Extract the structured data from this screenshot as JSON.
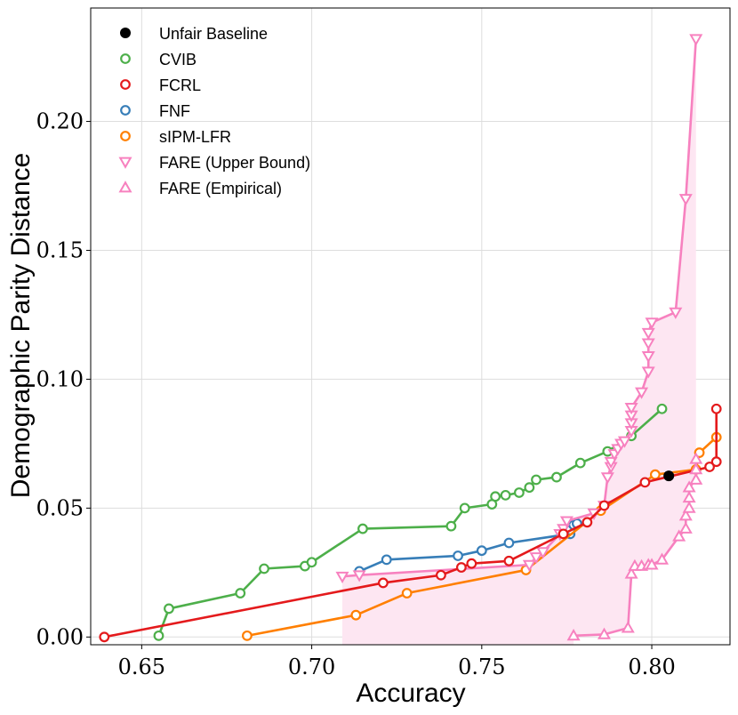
{
  "chart_data": {
    "type": "line",
    "title": "",
    "xlabel": "Accuracy",
    "ylabel": "Demographic Parity Distance",
    "xlim": [
      0.635,
      0.823
    ],
    "ylim": [
      -0.003,
      0.244
    ],
    "xticks": [
      0.65,
      0.7,
      0.75,
      0.8
    ],
    "xtick_labels": [
      "0.65",
      "0.70",
      "0.75",
      "0.80"
    ],
    "yticks": [
      0.0,
      0.05,
      0.1,
      0.15,
      0.2
    ],
    "ytick_labels": [
      "0.00",
      "0.05",
      "0.10",
      "0.15",
      "0.20"
    ],
    "grid": true,
    "legend_position": "top-left",
    "colors": {
      "baseline": "#000000",
      "cvib": "#4daf4a",
      "fcrl": "#e41a1c",
      "fnf": "#377eb8",
      "sipm": "#ff7f00",
      "fare": "#f781bf",
      "fill": "#fde6f2"
    },
    "series": [
      {
        "name": "Unfair Baseline",
        "key": "baseline",
        "marker": "dot",
        "points": [
          [
            0.805,
            0.0625
          ]
        ]
      },
      {
        "name": "CVIB",
        "key": "cvib",
        "marker": "circle",
        "points": [
          [
            0.655,
            0.0005
          ],
          [
            0.658,
            0.011
          ],
          [
            0.679,
            0.017
          ],
          [
            0.686,
            0.0265
          ],
          [
            0.698,
            0.0275
          ],
          [
            0.7,
            0.029
          ],
          [
            0.715,
            0.042
          ],
          [
            0.741,
            0.043
          ],
          [
            0.745,
            0.05
          ],
          [
            0.753,
            0.0515
          ],
          [
            0.754,
            0.0545
          ],
          [
            0.757,
            0.055
          ],
          [
            0.761,
            0.056
          ],
          [
            0.764,
            0.058
          ],
          [
            0.766,
            0.061
          ],
          [
            0.772,
            0.062
          ],
          [
            0.779,
            0.0675
          ],
          [
            0.787,
            0.072
          ],
          [
            0.794,
            0.078
          ],
          [
            0.803,
            0.0885
          ]
        ]
      },
      {
        "name": "FCRL",
        "key": "fcrl",
        "marker": "circle",
        "points": [
          [
            0.639,
            0.0
          ],
          [
            0.721,
            0.021
          ],
          [
            0.738,
            0.024
          ],
          [
            0.744,
            0.027
          ],
          [
            0.747,
            0.0285
          ],
          [
            0.758,
            0.0295
          ],
          [
            0.774,
            0.04
          ],
          [
            0.781,
            0.0445
          ],
          [
            0.786,
            0.051
          ],
          [
            0.798,
            0.06
          ],
          [
            0.817,
            0.066
          ],
          [
            0.819,
            0.068
          ],
          [
            0.819,
            0.0885
          ]
        ]
      },
      {
        "name": "FNF",
        "key": "fnf",
        "marker": "circle",
        "points": [
          [
            0.714,
            0.0255
          ],
          [
            0.722,
            0.03
          ],
          [
            0.743,
            0.0315
          ],
          [
            0.75,
            0.0335
          ],
          [
            0.758,
            0.0365
          ],
          [
            0.776,
            0.04
          ],
          [
            0.776,
            0.0415
          ],
          [
            0.777,
            0.0435
          ],
          [
            0.778,
            0.044
          ]
        ]
      },
      {
        "name": "sIPM-LFR",
        "key": "sipm",
        "marker": "circle",
        "points": [
          [
            0.681,
            0.0005
          ],
          [
            0.713,
            0.0085
          ],
          [
            0.728,
            0.017
          ],
          [
            0.763,
            0.026
          ],
          [
            0.785,
            0.049
          ],
          [
            0.801,
            0.063
          ],
          [
            0.813,
            0.065
          ],
          [
            0.814,
            0.0715
          ],
          [
            0.819,
            0.0775
          ]
        ]
      },
      {
        "name": "FARE (Upper Bound)",
        "key": "fare",
        "marker": "triangle-down",
        "points": [
          [
            0.709,
            0.0235
          ],
          [
            0.714,
            0.024
          ],
          [
            0.764,
            0.028
          ],
          [
            0.766,
            0.031
          ],
          [
            0.768,
            0.033
          ],
          [
            0.773,
            0.04
          ],
          [
            0.774,
            0.042
          ],
          [
            0.775,
            0.045
          ],
          [
            0.783,
            0.048
          ],
          [
            0.786,
            0.051
          ],
          [
            0.787,
            0.062
          ],
          [
            0.788,
            0.066
          ],
          [
            0.788,
            0.068
          ],
          [
            0.789,
            0.071
          ],
          [
            0.79,
            0.073
          ],
          [
            0.791,
            0.075
          ],
          [
            0.792,
            0.076
          ],
          [
            0.794,
            0.08
          ],
          [
            0.794,
            0.083
          ],
          [
            0.794,
            0.086
          ],
          [
            0.794,
            0.089
          ],
          [
            0.797,
            0.095
          ],
          [
            0.799,
            0.103
          ],
          [
            0.799,
            0.109
          ],
          [
            0.799,
            0.114
          ],
          [
            0.799,
            0.118
          ],
          [
            0.8,
            0.122
          ],
          [
            0.807,
            0.126
          ],
          [
            0.81,
            0.17
          ],
          [
            0.813,
            0.232
          ]
        ]
      },
      {
        "name": "FARE (Empirical)",
        "key": "fare",
        "marker": "triangle-up",
        "points": [
          [
            0.777,
            0.0005
          ],
          [
            0.786,
            0.001
          ],
          [
            0.793,
            0.0035
          ],
          [
            0.794,
            0.0245
          ],
          [
            0.795,
            0.0275
          ],
          [
            0.797,
            0.0275
          ],
          [
            0.799,
            0.028
          ],
          [
            0.8,
            0.028
          ],
          [
            0.803,
            0.03
          ],
          [
            0.808,
            0.039
          ],
          [
            0.81,
            0.042
          ],
          [
            0.81,
            0.047
          ],
          [
            0.811,
            0.05
          ],
          [
            0.811,
            0.054
          ],
          [
            0.811,
            0.058
          ],
          [
            0.813,
            0.061
          ],
          [
            0.813,
            0.065
          ],
          [
            0.813,
            0.069
          ]
        ]
      }
    ]
  }
}
